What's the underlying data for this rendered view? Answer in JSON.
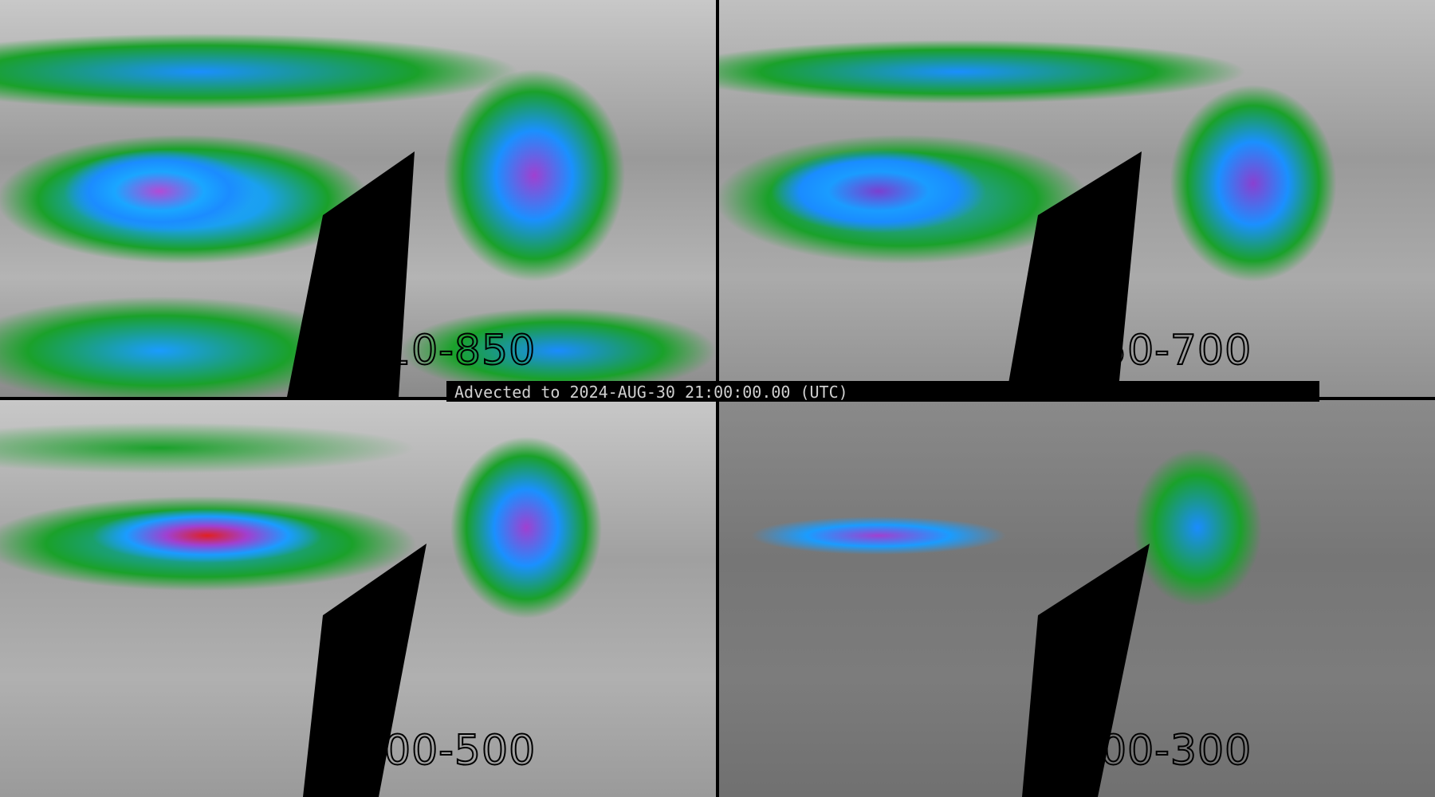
{
  "panels": [
    {
      "label": "10-850"
    },
    {
      "label": "50-700"
    },
    {
      "label": "00-500"
    },
    {
      "label": "00-300"
    }
  ],
  "banner": {
    "text": "Advected to 2024-AUG-30 21:00:00.00 (UTC)"
  },
  "colors": {
    "low": "#1aa12a",
    "mid": "#1a9cff",
    "high": "#a040d0",
    "peak": "#e02020",
    "background": "#000000"
  }
}
